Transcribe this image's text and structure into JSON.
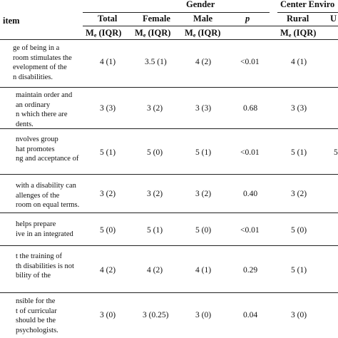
{
  "header": {
    "item_col": "item",
    "gender_group": "Gender",
    "center_group": "Center Enviro",
    "subcols": [
      "Total",
      "Female",
      "Male",
      "p",
      "Rural",
      "U"
    ],
    "stat_base": "M",
    "stat_sub": "e",
    "stat_suffix": " (IQR)"
  },
  "rows": [
    {
      "item": "ge of being in a\nroom stimulates the\nevelopment of the\nn disabilities.",
      "total": "4 (1)",
      "female": "3.5 (1)",
      "male": "4 (2)",
      "p": "<0.01",
      "rural": "4 (1)",
      "u": ""
    },
    {
      "item": "maintain order and\nan ordinary\nn which there are\ndents.",
      "total": "3 (3)",
      "female": "3 (2)",
      "male": "3 (3)",
      "p": "0.68",
      "rural": "3 (3)",
      "u": ""
    },
    {
      "item": "nvolves group\nhat promotes\nng and acceptance of",
      "total": "5 (1)",
      "female": "5 (0)",
      "male": "5 (1)",
      "p": "<0.01",
      "rural": "5 (1)",
      "u": "5"
    },
    {
      "item": "with a disability can\nallenges of the\nroom on equal terms.",
      "total": "3 (2)",
      "female": "3 (2)",
      "male": "3 (2)",
      "p": "0.40",
      "rural": "3 (2)",
      "u": ""
    },
    {
      "item": "helps prepare\nive in an integrated",
      "total": "5 (0)",
      "female": "5 (1)",
      "male": "5 (0)",
      "p": "<0.01",
      "rural": "5 (0)",
      "u": ""
    },
    {
      "item": "t the training of\nth disabilities is not\nbility of the",
      "total": "4 (2)",
      "female": "4 (2)",
      "male": "4 (1)",
      "p": "0.29",
      "rural": "5 (1)",
      "u": ""
    },
    {
      "item": "nsible for the\nt of curricular\nshould be the\npsychologists.",
      "total": "3 (0)",
      "female": "3 (0.25)",
      "male": "3 (0)",
      "p": "0.04",
      "rural": "3 (0)",
      "u": ""
    }
  ]
}
